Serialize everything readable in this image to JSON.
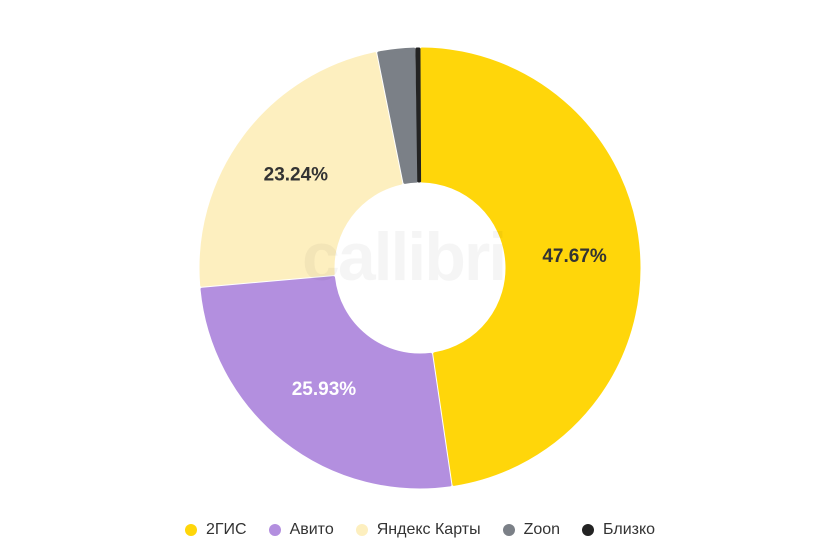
{
  "chart_data": {
    "type": "pie",
    "variant": "donut",
    "title": "",
    "categories": [
      "2ГИС",
      "Авито",
      "Яндекс Карты",
      "Zoon",
      "Близко"
    ],
    "values": [
      47.67,
      25.93,
      23.24,
      2.86,
      0.3
    ],
    "labels": [
      "47.67%",
      "25.93%",
      "23.24%",
      "",
      ""
    ],
    "colors": [
      "#ffd60a",
      "#b38fdf",
      "#fdefbf",
      "#7b8087",
      "#232323"
    ],
    "label_colors": [
      "#333333",
      "#ffffff",
      "#333333",
      "",
      ""
    ],
    "legend_position": "bottom"
  },
  "watermark": {
    "text": "callibri"
  }
}
